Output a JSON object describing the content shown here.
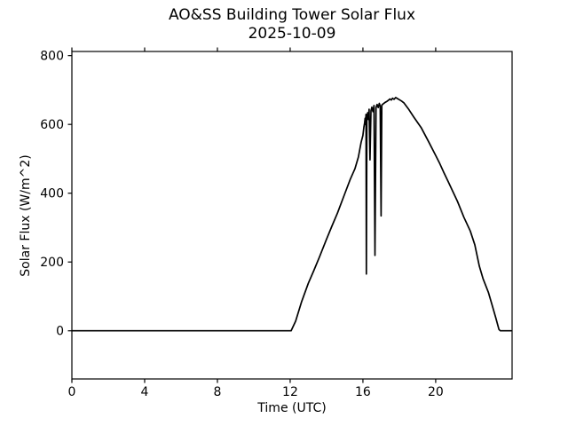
{
  "figure": {
    "title": "AO&SS Building Tower Solar Flux",
    "subtitle": "2025-10-09",
    "background_color": "#ffffff"
  },
  "chart_data": {
    "type": "line",
    "title": "AO&SS Building Tower Solar Flux",
    "subtitle": "2025-10-09",
    "xlabel": "Time (UTC)",
    "ylabel": "Solar Flux (W/m^2)",
    "xlim": [
      0,
      24.2
    ],
    "ylim": [
      -140,
      812
    ],
    "x_ticks": [
      0,
      4,
      8,
      12,
      16,
      20
    ],
    "y_ticks": [
      0,
      200,
      400,
      600,
      800
    ],
    "grid": false,
    "legend": "none",
    "line_color": "#000000",
    "axis_color": "#000000",
    "line_width": 1.7,
    "series": [
      {
        "name": "solar_flux",
        "points": [
          [
            0,
            0
          ],
          [
            2,
            0
          ],
          [
            4,
            0
          ],
          [
            6,
            0
          ],
          [
            8,
            0
          ],
          [
            10,
            0
          ],
          [
            11.5,
            0
          ],
          [
            12.05,
            0
          ],
          [
            12.3,
            28
          ],
          [
            12.63,
            85
          ],
          [
            13,
            138
          ],
          [
            13.3,
            175
          ],
          [
            13.6,
            213
          ],
          [
            14,
            266
          ],
          [
            14.3,
            305
          ],
          [
            14.6,
            342
          ],
          [
            15,
            398
          ],
          [
            15.3,
            440
          ],
          [
            15.56,
            471
          ],
          [
            15.75,
            505
          ],
          [
            15.9,
            548
          ],
          [
            16,
            568
          ],
          [
            16.05,
            592
          ],
          [
            16.09,
            604
          ],
          [
            16.12,
            618
          ],
          [
            16.14,
            600
          ],
          [
            16.17,
            629
          ],
          [
            16.19,
            165
          ],
          [
            16.22,
            622
          ],
          [
            16.26,
            634
          ],
          [
            16.3,
            614
          ],
          [
            16.34,
            644
          ],
          [
            16.39,
            497
          ],
          [
            16.44,
            640
          ],
          [
            16.49,
            650
          ],
          [
            16.55,
            637
          ],
          [
            16.61,
            655
          ],
          [
            16.66,
            219
          ],
          [
            16.72,
            649
          ],
          [
            16.78,
            658
          ],
          [
            16.84,
            649
          ],
          [
            16.9,
            661
          ],
          [
            16.95,
            653
          ],
          [
            17,
            334
          ],
          [
            17.04,
            656
          ],
          [
            17.12,
            660
          ],
          [
            17.22,
            664
          ],
          [
            17.32,
            667
          ],
          [
            17.42,
            671
          ],
          [
            17.48,
            674
          ],
          [
            17.56,
            671
          ],
          [
            17.63,
            676
          ],
          [
            17.71,
            673
          ],
          [
            17.8,
            678
          ],
          [
            17.9,
            675
          ],
          [
            18,
            672
          ],
          [
            18.12,
            668
          ],
          [
            18.25,
            663
          ],
          [
            18.5,
            645
          ],
          [
            18.8,
            621
          ],
          [
            19.2,
            591
          ],
          [
            19.6,
            551
          ],
          [
            20,
            510
          ],
          [
            20.2,
            489
          ],
          [
            20.45,
            460
          ],
          [
            20.7,
            432
          ],
          [
            20.95,
            404
          ],
          [
            21.2,
            376
          ],
          [
            21.55,
            330
          ],
          [
            21.9,
            290
          ],
          [
            22.15,
            250
          ],
          [
            22.4,
            188
          ],
          [
            22.6,
            152
          ],
          [
            22.9,
            111
          ],
          [
            23.1,
            75
          ],
          [
            23.3,
            38
          ],
          [
            23.48,
            4
          ],
          [
            23.55,
            0
          ],
          [
            23.8,
            0
          ],
          [
            24.15,
            0
          ]
        ]
      }
    ]
  }
}
